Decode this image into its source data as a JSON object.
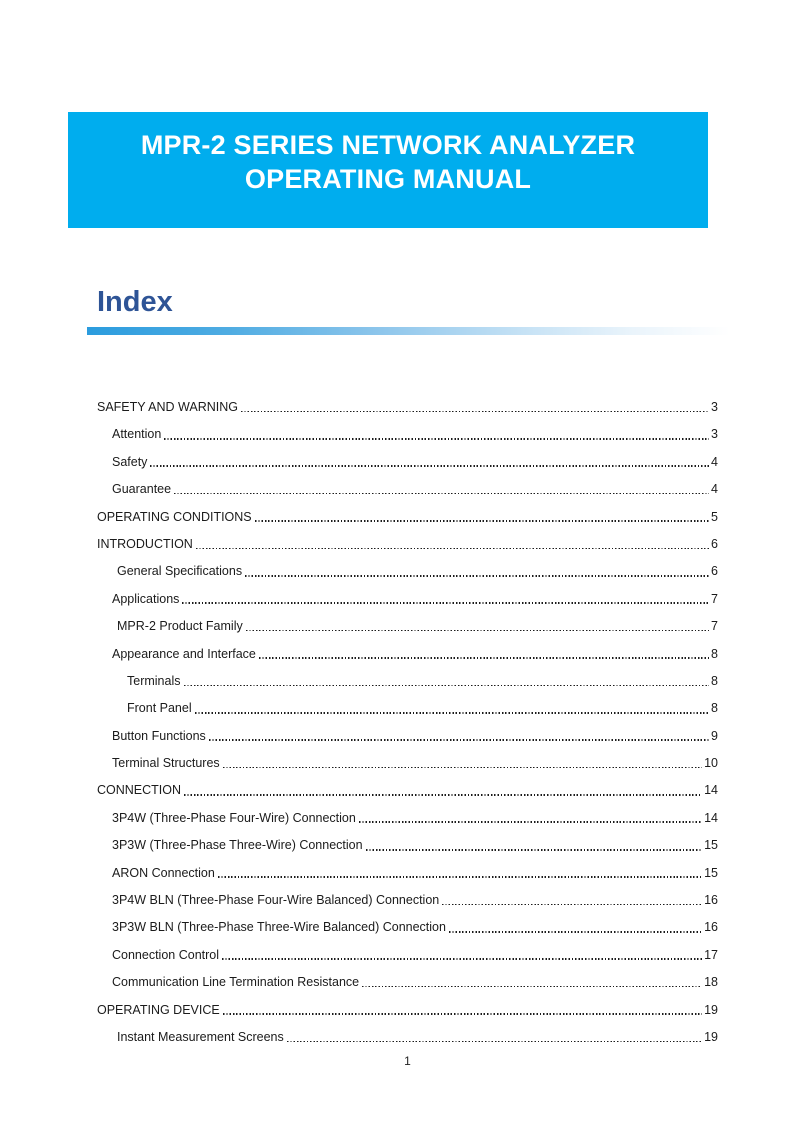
{
  "banner": {
    "title_line1": "MPR-2 SERIES NETWORK ANALYZER",
    "title_line2": "OPERATING MANUAL"
  },
  "index": {
    "heading": "Index"
  },
  "toc": {
    "items": [
      {
        "label": "SAFETY AND WARNING",
        "page": "3",
        "level": 0
      },
      {
        "label": "Attention",
        "page": "3",
        "level": 1
      },
      {
        "label": "Safety",
        "page": "4",
        "level": 1
      },
      {
        "label": "Guarantee",
        "page": "4",
        "level": 1
      },
      {
        "label": "OPERATING CONDITIONS",
        "page": "5",
        "level": 0
      },
      {
        "label": "INTRODUCTION",
        "page": "6",
        "level": 0
      },
      {
        "label": "General Specifications",
        "page": "6",
        "level": 2
      },
      {
        "label": "Applications",
        "page": "7",
        "level": 1
      },
      {
        "label": "MPR-2 Product Family",
        "page": "7",
        "level": 2
      },
      {
        "label": "Appearance and Interface",
        "page": "8",
        "level": 1
      },
      {
        "label": "Terminals",
        "page": "8",
        "level": 3
      },
      {
        "label": "Front Panel",
        "page": "8",
        "level": 3
      },
      {
        "label": "Button Functions",
        "page": "9",
        "level": 1
      },
      {
        "label": "Terminal Structures",
        "page": "10",
        "level": 1
      },
      {
        "label": "CONNECTION",
        "page": "14",
        "level": 0
      },
      {
        "label": "3P4W (Three-Phase Four-Wire) Connection",
        "page": "14",
        "level": 1
      },
      {
        "label": "3P3W (Three-Phase Three-Wire) Connection",
        "page": "15",
        "level": 1
      },
      {
        "label": "ARON Connection",
        "page": "15",
        "level": 1
      },
      {
        "label": "3P4W BLN (Three-Phase Four-Wire Balanced) Connection",
        "page": "16",
        "level": 1
      },
      {
        "label": "3P3W BLN (Three-Phase Three-Wire Balanced) Connection",
        "page": "16",
        "level": 1
      },
      {
        "label": "Connection Control",
        "page": "17",
        "level": 1
      },
      {
        "label": "Communication Line Termination Resistance",
        "page": "18",
        "level": 1
      },
      {
        "label": "OPERATING DEVICE",
        "page": "19",
        "level": 0
      },
      {
        "label": "Instant Measurement Screens",
        "page": "19",
        "level": 2
      }
    ]
  },
  "footer": {
    "page_number": "1"
  },
  "colors": {
    "banner_bg": "#00ADEE",
    "heading": "#2E5496",
    "rule_start": "#2B9CDE",
    "body_text": "#1B1B1B"
  }
}
